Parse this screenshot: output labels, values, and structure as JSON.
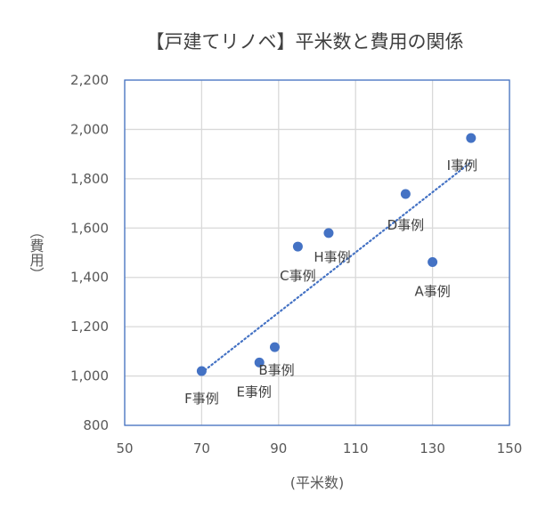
{
  "chart_data": {
    "type": "scatter",
    "title": "【戸建てリノベ】平米数と費用の関係",
    "xlabel": "(平米数)",
    "ylabel": "（費用）",
    "xlim": [
      50,
      150
    ],
    "ylim": [
      800,
      2200
    ],
    "x_ticks": [
      "50",
      "70",
      "90",
      "110",
      "130",
      "150"
    ],
    "y_ticks": [
      "800",
      "1,000",
      "1,200",
      "1,400",
      "1,600",
      "1,800",
      "2,000",
      "2,200"
    ],
    "grid": true,
    "trendline": "linear",
    "marker_color": "#4472C4",
    "trend_color": "#4472C4",
    "points": [
      {
        "label": "F事例",
        "x": 70,
        "y": 1020
      },
      {
        "label": "E事例",
        "x": 85,
        "y": 1055
      },
      {
        "label": "B事例",
        "x": 89,
        "y": 1117
      },
      {
        "label": "C事例",
        "x": 95,
        "y": 1525
      },
      {
        "label": "H事例",
        "x": 103,
        "y": 1580
      },
      {
        "label": "D事例",
        "x": 123,
        "y": 1738
      },
      {
        "label": "A事例",
        "x": 130,
        "y": 1462
      },
      {
        "label": "I事例",
        "x": 140,
        "y": 1965
      }
    ]
  }
}
